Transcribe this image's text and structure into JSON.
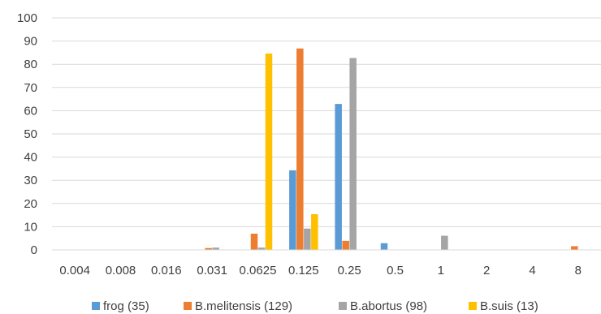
{
  "chart_data": {
    "type": "bar",
    "categories": [
      "0.004",
      "0.008",
      "0.016",
      "0.031",
      "0.0625",
      "0.125",
      "0.25",
      "0.5",
      "1",
      "2",
      "4",
      "8"
    ],
    "series": [
      {
        "name": "frog (35)",
        "color": "#5B9BD5",
        "values": [
          0,
          0,
          0,
          0,
          0,
          34.3,
          62.9,
          2.9,
          0,
          0,
          0,
          0
        ]
      },
      {
        "name": "B.melitensis (129)",
        "color": "#ED7D31",
        "values": [
          0,
          0,
          0,
          0.8,
          7.0,
          86.8,
          3.9,
          0,
          0,
          0,
          0,
          1.6
        ]
      },
      {
        "name": "B.abortus (98)",
        "color": "#A5A5A5",
        "values": [
          0,
          0,
          0,
          1.0,
          1.0,
          9.2,
          82.7,
          0,
          6.1,
          0,
          0,
          0
        ]
      },
      {
        "name": "B.suis (13)",
        "color": "#FFC000",
        "values": [
          0,
          0,
          0,
          0,
          84.6,
          15.4,
          0,
          0,
          0,
          0,
          0,
          0
        ]
      }
    ],
    "yticks": [
      "0",
      "10",
      "20",
      "30",
      "40",
      "50",
      "60",
      "70",
      "80",
      "90",
      "100"
    ],
    "ylim": [
      0,
      100
    ],
    "grid": true,
    "legend_position": "bottom"
  }
}
